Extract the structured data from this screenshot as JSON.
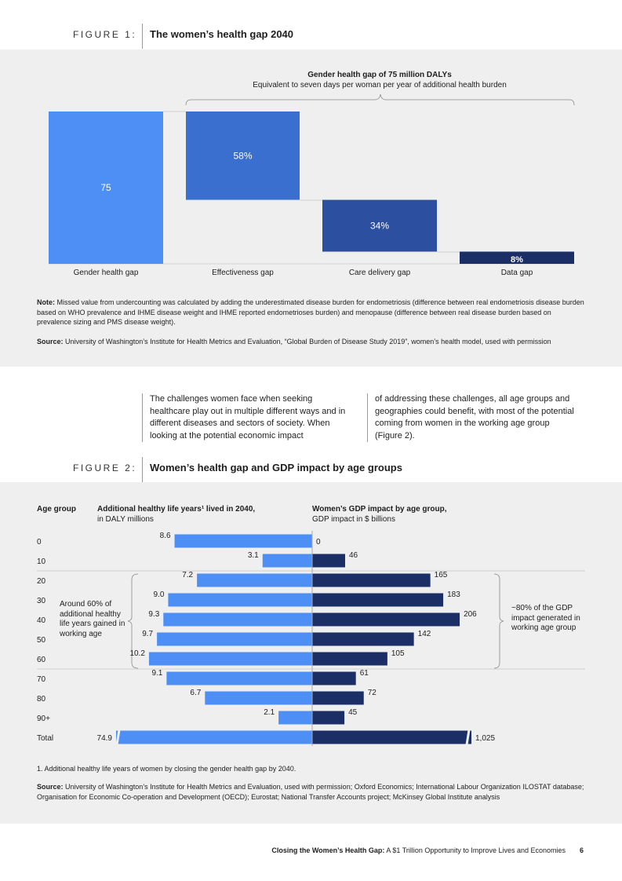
{
  "figure1": {
    "label": "FIGURE 1:",
    "title": "The women’s health gap 2040",
    "brace_title": "Gender health gap of 75 million DALYs",
    "brace_subtitle": "Equivalent to seven days per woman per year of additional health burden",
    "note_label": "Note:",
    "note_text": "Missed value from undercounting was calculated by adding the underestimated disease burden for endometriosis (difference between real endometriosis disease burden based on WHO prevalence and IHME disease weight and IHME reported endometrioses burden) and menopause (difference between real disease burden based on prevalence sizing and PMS disease weight).",
    "source_label": "Source:",
    "source_text": "University of Washington’s Institute for Health Metrics and Evaluation, “Global Burden of Disease Study 2019”, women’s health model, used with permission",
    "colors": {
      "total": "#4d8ff5",
      "effectiveness": "#3a6fd0",
      "care": "#2c4fa0",
      "data": "#1b2e66"
    }
  },
  "intro": {
    "col1": "The challenges women face when seeking healthcare play out in multiple different ways and in different diseases and sectors of society. When looking at the potential economic impact",
    "col2": "of addressing these challenges, all age groups and geographies could benefit, with most of the potential coming from women in the working age group (Figure 2)."
  },
  "figure2": {
    "label": "FIGURE 2:",
    "title": "Women’s health gap and GDP impact by age groups",
    "age_header": "Age group",
    "left_header": "Additional healthy life years¹ lived in 2040,",
    "left_sub": "in DALY millions",
    "right_header": "Women’s GDP impact by age group,",
    "right_sub": "GDP impact in $ billions",
    "left_annotation": "Around 60% of additional healthy life years gained in working age",
    "right_annotation": "~80% of the GDP impact generated in working age group",
    "footnote": "1. Additional healthy life years of women by closing the gender health gap by 2040.",
    "source_label": "Source:",
    "source_text": "University of Washington’s Institute for Health Metrics and Evaluation, used with permission; Oxford Economics; International Labour Organization ILOSTAT database; Organisation for Economic Co-operation and Development (OECD); Eurostat; National Transfer Accounts project; McKinsey Global Institute analysis",
    "colors": {
      "left": "#4d8ff5",
      "right": "#1b2e66"
    }
  },
  "footer": {
    "bold": "Closing the Women’s Health Gap:",
    "rest": "A $1 Trillion Opportunity to Improve Lives and Economies",
    "page": "6"
  },
  "chart_data": [
    {
      "type": "bar",
      "subtype": "waterfall",
      "categories": [
        "Gender health gap",
        "Effectiveness gap",
        "Care delivery gap",
        "Data gap"
      ],
      "values": [
        75,
        58,
        34,
        8
      ],
      "value_labels": [
        "75",
        "58%",
        "34%",
        "8%"
      ],
      "value_units": [
        "DALYs (millions)",
        "% of gap",
        "% of gap",
        "% of gap"
      ]
    },
    {
      "type": "bar",
      "subtype": "butterfly",
      "categories": [
        "0",
        "10",
        "20",
        "30",
        "40",
        "50",
        "60",
        "70",
        "80",
        "90+",
        "Total"
      ],
      "series": [
        {
          "values": [
            8.6,
            3.1,
            7.2,
            9.0,
            9.3,
            9.7,
            10.2,
            9.1,
            6.7,
            2.1,
            74.9
          ],
          "labels": [
            "8.6",
            "3.1",
            "7.2",
            "9.0",
            "9.3",
            "9.7",
            "10.2",
            "9.1",
            "6.7",
            "2.1",
            "74.9"
          ]
        },
        {
          "values": [
            0,
            46,
            165,
            183,
            206,
            142,
            105,
            61,
            72,
            45,
            1025
          ],
          "labels": [
            "0",
            "46",
            "165",
            "183",
            "206",
            "142",
            "105",
            "61",
            "72",
            "45",
            "1,025"
          ]
        }
      ],
      "total_bars_truncated": true
    }
  ]
}
